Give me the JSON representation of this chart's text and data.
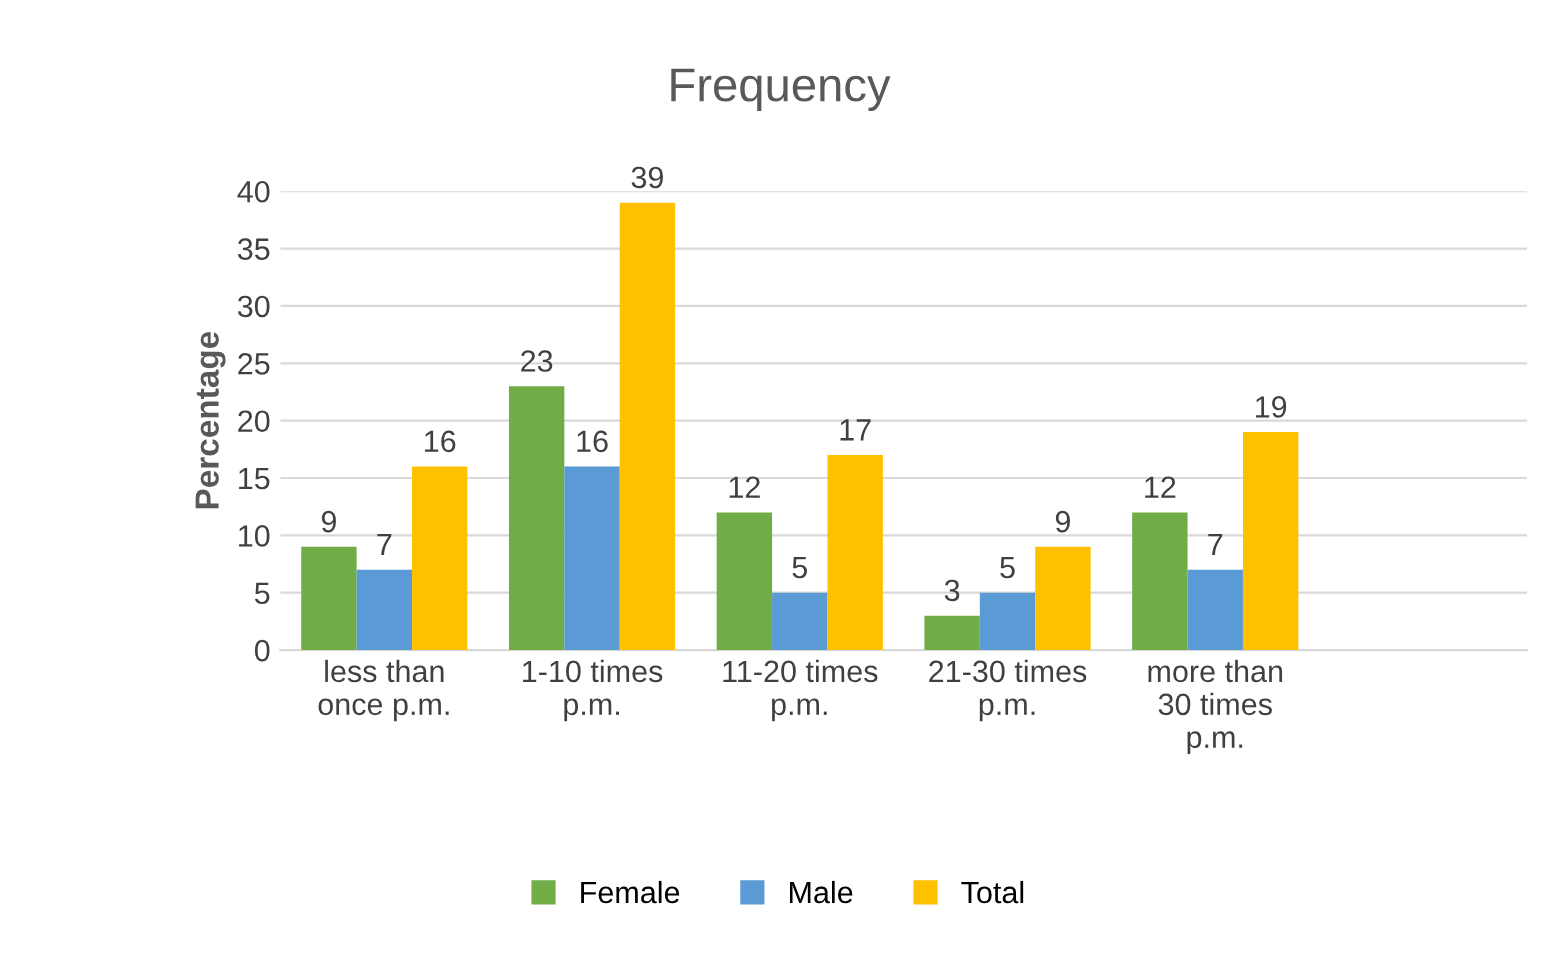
{
  "chart_data": {
    "type": "bar",
    "title": "Frequency",
    "ylabel": "Percentage",
    "categories": [
      "less than\nonce p.m.",
      "1-10 times\np.m.",
      "11-20 times\np.m.",
      "21-30 times\np.m.",
      "more than\n30 times\np.m.",
      null
    ],
    "series": [
      {
        "name": "Female",
        "color": "#70ad47",
        "values": [
          9,
          23,
          12,
          3,
          12,
          null
        ]
      },
      {
        "name": "Male",
        "color": "#5b9bd5",
        "values": [
          7,
          16,
          5,
          5,
          7,
          null
        ]
      },
      {
        "name": "Total",
        "color": "#ffc000",
        "values": [
          16,
          39,
          17,
          9,
          19,
          null
        ]
      }
    ],
    "ylim": [
      0,
      40
    ],
    "yticks": [
      0,
      5,
      10,
      15,
      20,
      25,
      30,
      35,
      40
    ],
    "grid": "y",
    "legend": "bottom",
    "data_labels": true
  }
}
